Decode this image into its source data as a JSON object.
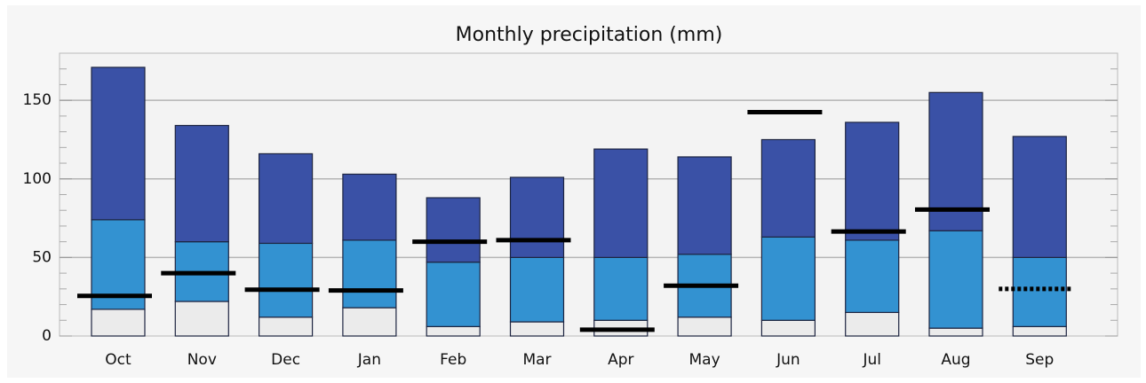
{
  "chart_data": {
    "type": "bar",
    "stacked": true,
    "title": "Monthly precipitation (mm)",
    "categories": [
      "Oct",
      "Nov",
      "Dec",
      "Jan",
      "Feb",
      "Mar",
      "Apr",
      "May",
      "Jun",
      "Jul",
      "Aug",
      "Sep"
    ],
    "series": [
      {
        "color": "#ebebeb",
        "values": [
          17,
          22,
          12,
          18,
          6,
          9,
          10,
          12,
          10,
          15,
          5,
          6
        ]
      },
      {
        "color": "#3392d1",
        "values": [
          57,
          38,
          47,
          43,
          41,
          41,
          40,
          40,
          53,
          46,
          62,
          44
        ]
      },
      {
        "color": "#3a51a6",
        "values": [
          97,
          74,
          57,
          42,
          41,
          51,
          69,
          62,
          62,
          75,
          88,
          77
        ]
      }
    ],
    "markers": [
      {
        "type": "marker",
        "style": "solid",
        "color": "#000000",
        "values": [
          25.5,
          40,
          29.5,
          29,
          60,
          61,
          4,
          32,
          142.5,
          66.5,
          80.5,
          null
        ]
      },
      {
        "type": "marker",
        "style": "dotted",
        "color": "#000000",
        "values": [
          null,
          null,
          null,
          null,
          null,
          null,
          null,
          null,
          null,
          null,
          null,
          30
        ]
      }
    ],
    "ylim": [
      0,
      180
    ],
    "yticks": [
      0,
      50,
      100,
      150
    ],
    "minor_yticks": [
      10,
      20,
      30,
      40,
      60,
      70,
      80,
      90,
      110,
      120,
      130,
      140,
      160,
      170
    ],
    "grid": true
  }
}
